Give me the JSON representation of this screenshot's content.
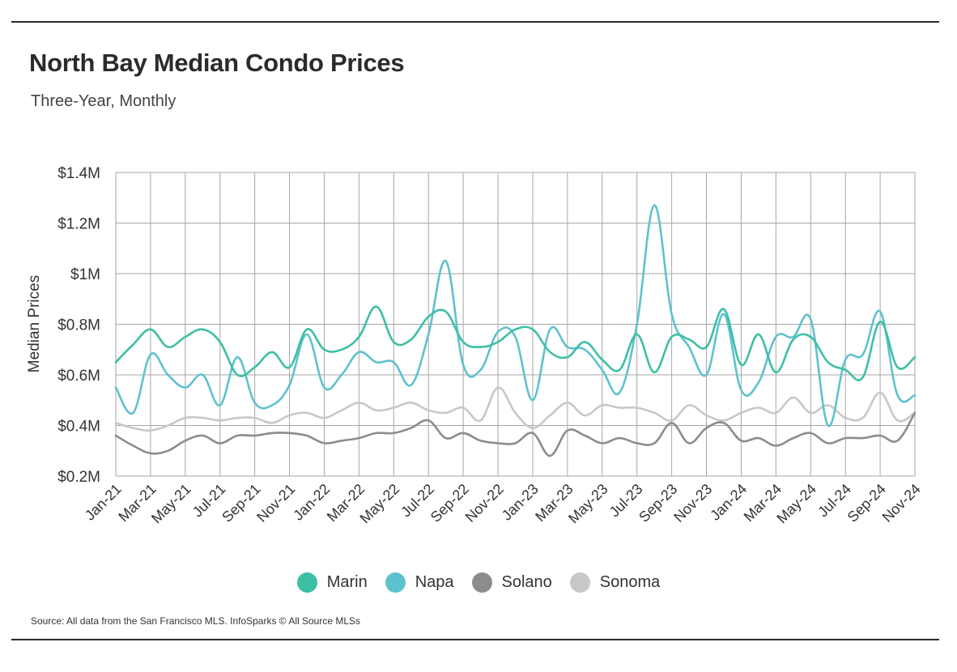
{
  "header": {
    "title": "North Bay Median Condo Prices",
    "subtitle": "Three-Year, Monthly"
  },
  "footer": {
    "source": "Source:  All data from the San Francisco MLS. InfoSparks © All Source MLSs"
  },
  "chart_data": {
    "type": "line",
    "title": "North Bay Median Condo Prices",
    "subtitle": "Three-Year, Monthly",
    "xlabel": "",
    "ylabel": "Median Prices",
    "ylim": [
      0.2,
      1.4
    ],
    "y_ticks": [
      0.2,
      0.4,
      0.6,
      0.8,
      1.0,
      1.2,
      1.4
    ],
    "y_tick_labels": [
      "$0.2M",
      "$0.4M",
      "$0.6M",
      "$0.8M",
      "$1M",
      "$1.2M",
      "$1.4M"
    ],
    "x": [
      "Jan-21",
      "Feb-21",
      "Mar-21",
      "Apr-21",
      "May-21",
      "Jun-21",
      "Jul-21",
      "Aug-21",
      "Sep-21",
      "Oct-21",
      "Nov-21",
      "Dec-21",
      "Jan-22",
      "Feb-22",
      "Mar-22",
      "Apr-22",
      "May-22",
      "Jun-22",
      "Jul-22",
      "Aug-22",
      "Sep-22",
      "Oct-22",
      "Nov-22",
      "Dec-22",
      "Jan-23",
      "Feb-23",
      "Mar-23",
      "Apr-23",
      "May-23",
      "Jun-23",
      "Jul-23",
      "Aug-23",
      "Sep-23",
      "Oct-23",
      "Nov-23",
      "Dec-23",
      "Jan-24",
      "Feb-24",
      "Mar-24",
      "Apr-24",
      "May-24",
      "Jun-24",
      "Jul-24",
      "Aug-24",
      "Sep-24",
      "Oct-24",
      "Nov-24"
    ],
    "x_tick_labels": [
      "Jan-21",
      "Mar-21",
      "May-21",
      "Jul-21",
      "Sep-21",
      "Nov-21",
      "Jan-22",
      "Mar-22",
      "May-22",
      "Jul-22",
      "Sep-22",
      "Nov-22",
      "Jan-23",
      "Mar-23",
      "May-23",
      "Jul-23",
      "Sep-23",
      "Nov-23",
      "Jan-24",
      "Mar-24",
      "May-24",
      "Jul-24",
      "Sep-24",
      "Nov-24"
    ],
    "grid": true,
    "legend_position": "bottom",
    "series": [
      {
        "name": "Marin",
        "color": "#3dbfa4",
        "values": [
          0.65,
          0.72,
          0.78,
          0.71,
          0.75,
          0.78,
          0.73,
          0.6,
          0.63,
          0.69,
          0.63,
          0.78,
          0.7,
          0.7,
          0.75,
          0.87,
          0.73,
          0.74,
          0.83,
          0.85,
          0.73,
          0.71,
          0.73,
          0.78,
          0.78,
          0.69,
          0.67,
          0.73,
          0.66,
          0.62,
          0.76,
          0.61,
          0.75,
          0.74,
          0.71,
          0.86,
          0.64,
          0.76,
          0.61,
          0.74,
          0.75,
          0.65,
          0.62,
          0.59,
          0.81,
          0.63,
          0.67
        ]
      },
      {
        "name": "Napa",
        "color": "#5ec2ce",
        "values": [
          0.55,
          0.45,
          0.68,
          0.6,
          0.55,
          0.6,
          0.48,
          0.67,
          0.49,
          0.48,
          0.56,
          0.76,
          0.55,
          0.6,
          0.69,
          0.65,
          0.65,
          0.56,
          0.76,
          1.05,
          0.64,
          0.62,
          0.77,
          0.75,
          0.5,
          0.78,
          0.71,
          0.7,
          0.62,
          0.53,
          0.8,
          1.27,
          0.84,
          0.71,
          0.6,
          0.84,
          0.54,
          0.57,
          0.75,
          0.75,
          0.82,
          0.4,
          0.66,
          0.68,
          0.85,
          0.52,
          0.52
        ]
      },
      {
        "name": "Solano",
        "color": "#8c8c8c",
        "values": [
          0.36,
          0.32,
          0.29,
          0.3,
          0.34,
          0.36,
          0.33,
          0.36,
          0.36,
          0.37,
          0.37,
          0.36,
          0.33,
          0.34,
          0.35,
          0.37,
          0.37,
          0.39,
          0.42,
          0.35,
          0.37,
          0.34,
          0.33,
          0.33,
          0.37,
          0.28,
          0.38,
          0.36,
          0.33,
          0.35,
          0.33,
          0.33,
          0.41,
          0.33,
          0.39,
          0.41,
          0.34,
          0.35,
          0.32,
          0.35,
          0.37,
          0.33,
          0.35,
          0.35,
          0.36,
          0.34,
          0.45
        ]
      },
      {
        "name": "Sonoma",
        "color": "#c8c8c8",
        "values": [
          0.41,
          0.39,
          0.38,
          0.4,
          0.43,
          0.43,
          0.42,
          0.43,
          0.43,
          0.41,
          0.44,
          0.45,
          0.43,
          0.46,
          0.49,
          0.46,
          0.47,
          0.49,
          0.46,
          0.45,
          0.47,
          0.42,
          0.55,
          0.45,
          0.39,
          0.44,
          0.49,
          0.44,
          0.48,
          0.47,
          0.47,
          0.45,
          0.42,
          0.48,
          0.44,
          0.42,
          0.45,
          0.47,
          0.45,
          0.51,
          0.45,
          0.48,
          0.43,
          0.43,
          0.53,
          0.42,
          0.45
        ]
      }
    ]
  }
}
